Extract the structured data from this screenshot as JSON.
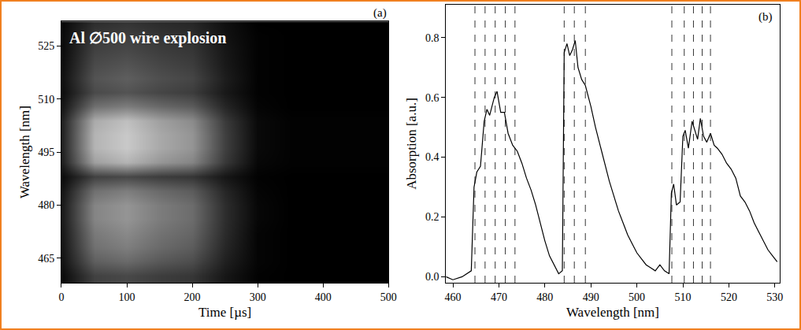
{
  "chart_data": [
    {
      "type": "heatmap",
      "title": "Al ∅500 wire explosion",
      "panel_label": "(a)",
      "x_label": "Time [µs]",
      "y_label": "Wavelength [nm]",
      "x": [
        0,
        50,
        100,
        150,
        200,
        250,
        300,
        350,
        400,
        450,
        500
      ],
      "y": [
        460,
        464,
        468,
        472,
        476,
        480,
        484,
        488,
        492,
        496,
        500,
        504,
        508,
        512,
        516,
        520,
        524,
        528,
        532
      ],
      "z": [
        [
          0.05,
          0.3,
          0.33,
          0.28,
          0.25,
          0.11,
          0.02,
          0.01,
          0.01,
          0.01,
          0.01
        ],
        [
          0.08,
          0.43,
          0.48,
          0.4,
          0.35,
          0.15,
          0.03,
          0.01,
          0.01,
          0.01,
          0.01
        ],
        [
          0.09,
          0.51,
          0.57,
          0.48,
          0.42,
          0.18,
          0.03,
          0.01,
          0.01,
          0.01,
          0.01
        ],
        [
          0.1,
          0.55,
          0.62,
          0.52,
          0.46,
          0.2,
          0.03,
          0.01,
          0.01,
          0.01,
          0.01
        ],
        [
          0.11,
          0.6,
          0.67,
          0.56,
          0.49,
          0.21,
          0.04,
          0.01,
          0.01,
          0.01,
          0.01
        ],
        [
          0.11,
          0.6,
          0.67,
          0.56,
          0.49,
          0.21,
          0.04,
          0.01,
          0.01,
          0.01,
          0.01
        ],
        [
          0.09,
          0.51,
          0.57,
          0.48,
          0.42,
          0.18,
          0.03,
          0.01,
          0.01,
          0.01,
          0.01
        ],
        [
          0.05,
          0.3,
          0.33,
          0.28,
          0.25,
          0.11,
          0.02,
          0.01,
          0.01,
          0.01,
          0.01
        ],
        [
          0.13,
          0.72,
          0.81,
          0.68,
          0.6,
          0.26,
          0.04,
          0.02,
          0.02,
          0.02,
          0.02
        ],
        [
          0.14,
          0.81,
          0.9,
          0.76,
          0.67,
          0.29,
          0.05,
          0.02,
          0.02,
          0.02,
          0.02
        ],
        [
          0.14,
          0.81,
          0.9,
          0.76,
          0.67,
          0.29,
          0.05,
          0.02,
          0.02,
          0.02,
          0.02
        ],
        [
          0.14,
          0.77,
          0.86,
          0.72,
          0.63,
          0.27,
          0.05,
          0.02,
          0.02,
          0.02,
          0.02
        ],
        [
          0.09,
          0.51,
          0.57,
          0.48,
          0.42,
          0.18,
          0.03,
          0.01,
          0.01,
          0.01,
          0.01
        ],
        [
          0.06,
          0.34,
          0.38,
          0.32,
          0.28,
          0.12,
          0.02,
          0.01,
          0.01,
          0.01,
          0.01
        ],
        [
          0.07,
          0.38,
          0.43,
          0.36,
          0.32,
          0.14,
          0.02,
          0.01,
          0.01,
          0.01,
          0.01
        ],
        [
          0.06,
          0.34,
          0.38,
          0.32,
          0.28,
          0.12,
          0.02,
          0.01,
          0.01,
          0.01,
          0.01
        ],
        [
          0.05,
          0.3,
          0.33,
          0.28,
          0.25,
          0.11,
          0.02,
          0.01,
          0.01,
          0.01,
          0.01
        ],
        [
          0.05,
          0.26,
          0.29,
          0.24,
          0.21,
          0.09,
          0.02,
          0.01,
          0.01,
          0.01,
          0.01
        ],
        [
          0.04,
          0.21,
          0.24,
          0.2,
          0.18,
          0.08,
          0.01,
          0.01,
          0.01,
          0.01,
          0.01
        ]
      ],
      "xlim": [
        0,
        500
      ],
      "xticks": [
        0,
        100,
        200,
        300,
        400,
        500
      ],
      "ylim": [
        458,
        532
      ],
      "yticks": [
        465,
        480,
        495,
        510,
        525
      ],
      "grid": false
    },
    {
      "type": "line",
      "panel_label": "(b)",
      "x_label": "Wavelength [nm]",
      "y_label": "Absorption [a.u.]",
      "color": "#000000",
      "x": [
        458.5,
        460,
        462,
        464,
        464.6,
        465.2,
        466,
        466.8,
        467.4,
        468,
        469,
        469.6,
        470.4,
        471.2,
        472,
        473,
        474,
        475,
        476,
        477,
        478,
        479,
        480,
        481,
        482,
        483,
        483.8,
        484.2,
        484.8,
        485.4,
        486,
        486.6,
        487.2,
        488,
        488.8,
        490,
        491,
        492,
        493,
        494,
        495,
        496,
        497,
        498,
        499,
        500,
        501,
        502,
        503,
        504,
        505,
        506,
        507,
        507.5,
        508,
        508.6,
        509.4,
        510,
        510.5,
        511.2,
        512,
        512.6,
        513.2,
        513.8,
        514.5,
        515.2,
        516,
        516.8,
        517.5,
        518.5,
        519.5,
        520.5,
        521.5,
        522.5,
        523.5,
        524.5,
        525.5,
        526.5,
        527.5,
        528.5,
        529.5,
        530.5
      ],
      "values": [
        0.0,
        -0.01,
        0.0,
        0.02,
        0.3,
        0.35,
        0.37,
        0.52,
        0.56,
        0.54,
        0.6,
        0.62,
        0.55,
        0.55,
        0.48,
        0.44,
        0.42,
        0.38,
        0.33,
        0.29,
        0.24,
        0.18,
        0.12,
        0.07,
        0.04,
        0.01,
        0.02,
        0.75,
        0.78,
        0.74,
        0.76,
        0.79,
        0.7,
        0.66,
        0.64,
        0.57,
        0.5,
        0.44,
        0.38,
        0.32,
        0.27,
        0.22,
        0.18,
        0.14,
        0.11,
        0.08,
        0.06,
        0.04,
        0.03,
        0.02,
        0.04,
        0.02,
        0.01,
        0.28,
        0.31,
        0.24,
        0.25,
        0.47,
        0.49,
        0.43,
        0.52,
        0.49,
        0.46,
        0.53,
        0.47,
        0.45,
        0.48,
        0.44,
        0.43,
        0.41,
        0.38,
        0.36,
        0.33,
        0.27,
        0.25,
        0.22,
        0.18,
        0.15,
        0.12,
        0.09,
        0.07,
        0.05
      ],
      "vlines": {
        "x": [
          464.8,
          467,
          469.2,
          471.4,
          473.5,
          484.2,
          486.4,
          488.8,
          507.6,
          510.3,
          512.3,
          514.2,
          516
        ],
        "line_style": "dash"
      },
      "xlim": [
        458.5,
        531
      ],
      "xticks": [
        460,
        470,
        480,
        490,
        500,
        510,
        520,
        530
      ],
      "ylim": [
        -0.02,
        0.91
      ],
      "yticks": [
        {
          "value": 0,
          "label": "0.0"
        },
        0.2,
        0.4,
        0.6,
        0.8
      ],
      "grid": false
    }
  ]
}
